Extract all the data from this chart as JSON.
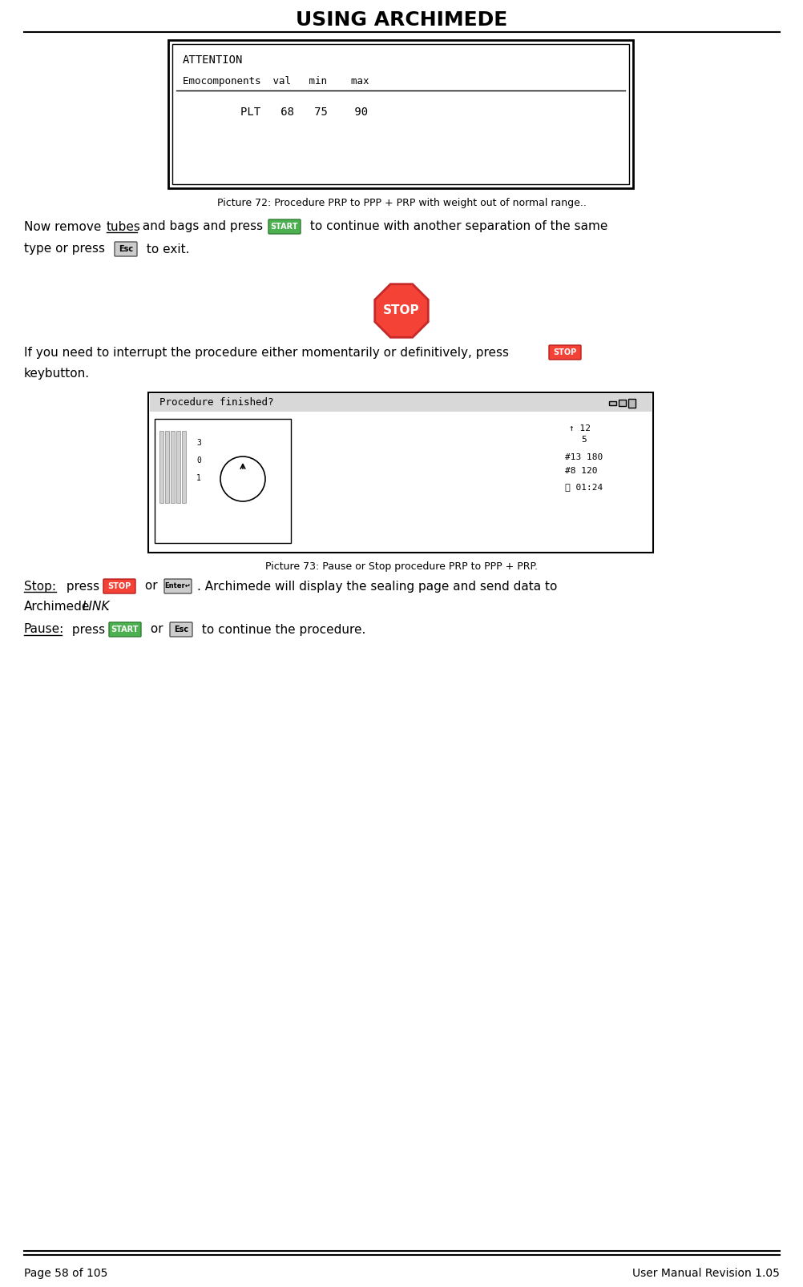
{
  "title": "USING ARCHIMEDE",
  "page_left": "Page 58 of 105",
  "page_right": "User Manual Revision 1.05",
  "pic72_caption": "Picture 72: Procedure PRP to PPP + PRP with weight out of normal range..",
  "pic73_caption": "Picture 73: Pause or Stop procedure PRP to PPP + PRP.",
  "attention_title": "ATTENTION",
  "attention_row1": "Emocomponents  val   min    max",
  "attention_row2": "PLT   68   75    90",
  "stop_label": "STOP",
  "bg_color": "#ffffff",
  "title_color": "#000000",
  "start_btn_color": "#4CAF50",
  "stop_btn_color": "#f44336",
  "stop_sign_color": "#f44336",
  "stop_sign_text": "#ffffff"
}
